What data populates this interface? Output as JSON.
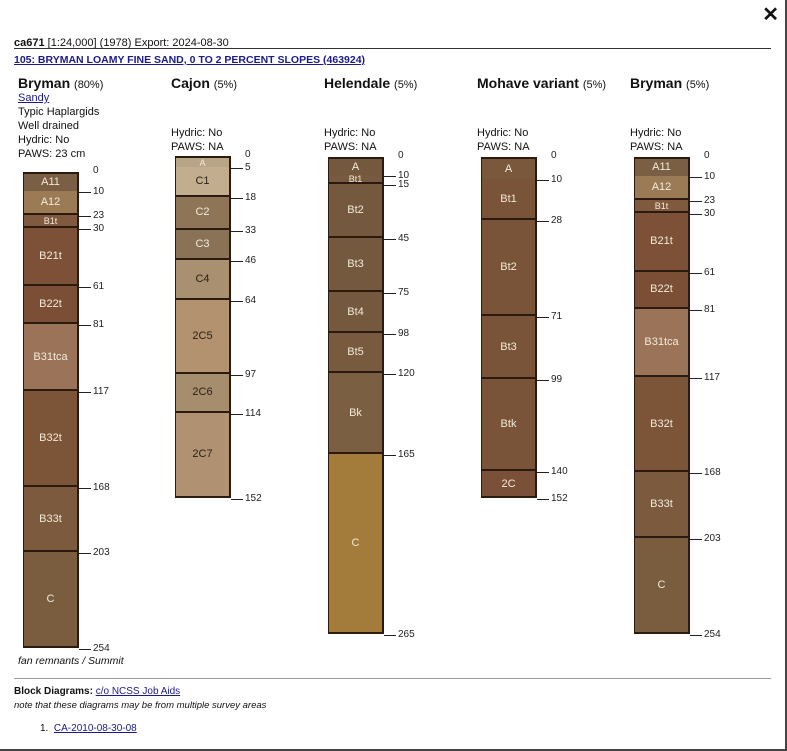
{
  "header": {
    "survey": "ca671",
    "scale": "[1:24,000]",
    "year": "(1978)",
    "export": "Export: 2024-08-30"
  },
  "mapunit_link": "105: BRYMAN LOAMY FINE SAND, 0 TO 2 PERCENT SLOPES (463924)",
  "close_label": "✕",
  "components": [
    {
      "name": "Bryman",
      "pct": "(80%)",
      "link": "Sandy",
      "lines": [
        "Typic Haplargids",
        "Well drained",
        "Hydric: No",
        "PAWS: 23 cm"
      ],
      "horizons": [
        {
          "n": "A11",
          "b": 10,
          "c": "#7a5f44"
        },
        {
          "n": "A12",
          "b": 23,
          "c": "#9b7b55"
        },
        {
          "n": "B1t",
          "b": 30,
          "c": "#7f5a3e"
        },
        {
          "n": "B21t",
          "b": 61,
          "c": "#7c5138"
        },
        {
          "n": "B22t",
          "b": 81,
          "c": "#7a4f36"
        },
        {
          "n": "B31tca",
          "b": 117,
          "c": "#9a7358"
        },
        {
          "n": "B32t",
          "b": 168,
          "c": "#7c5539"
        },
        {
          "n": "B33t",
          "b": 203,
          "c": "#7b5a3e"
        },
        {
          "n": "C",
          "b": 254,
          "c": "#7a5d3f"
        }
      ],
      "footer": "fan remnants / Summit"
    },
    {
      "name": "Cajon",
      "pct": "(5%)",
      "lines": [
        "Hydric: No",
        "PAWS: NA"
      ],
      "horizons": [
        {
          "n": "A",
          "b": 5,
          "c": "#b8a486"
        },
        {
          "n": "C1",
          "b": 18,
          "c": "#c2ad8e",
          "dark": true
        },
        {
          "n": "C2",
          "b": 33,
          "c": "#8e7558"
        },
        {
          "n": "C3",
          "b": 46,
          "c": "#8a7256"
        },
        {
          "n": "C4",
          "b": 64,
          "c": "#a89070",
          "dark": true
        },
        {
          "n": "2C5",
          "b": 97,
          "c": "#b39270",
          "dark": true
        },
        {
          "n": "2C6",
          "b": 114,
          "c": "#a58d6d",
          "dark": true
        },
        {
          "n": "2C7",
          "b": 152,
          "c": "#b09272",
          "dark": true
        }
      ]
    },
    {
      "name": "Helendale",
      "pct": "(5%)",
      "lines": [
        "Hydric: No",
        "PAWS: NA"
      ],
      "horizons": [
        {
          "n": "A",
          "b": 10,
          "c": "#75593e"
        },
        {
          "n": "Bt1",
          "b": 15,
          "c": "#775a3f"
        },
        {
          "n": "Bt2",
          "b": 45,
          "c": "#75593e"
        },
        {
          "n": "Bt3",
          "b": 75,
          "c": "#75593e"
        },
        {
          "n": "Bt4",
          "b": 98,
          "c": "#75593e"
        },
        {
          "n": "Bt5",
          "b": 120,
          "c": "#785a3f"
        },
        {
          "n": "Bk",
          "b": 165,
          "c": "#7a5f42"
        },
        {
          "n": "C",
          "b": 265,
          "c": "#a37c3c"
        }
      ]
    },
    {
      "name": "Mohave variant",
      "pct": "(5%)",
      "lines": [
        "Hydric: No",
        "PAWS: NA"
      ],
      "horizons": [
        {
          "n": "A",
          "b": 10,
          "c": "#7a583c"
        },
        {
          "n": "Bt1",
          "b": 28,
          "c": "#7a5439"
        },
        {
          "n": "Bt2",
          "b": 71,
          "c": "#7a5439"
        },
        {
          "n": "Bt3",
          "b": 99,
          "c": "#7a5439"
        },
        {
          "n": "Btk",
          "b": 140,
          "c": "#7a5439"
        },
        {
          "n": "2C",
          "b": 152,
          "c": "#7a5038"
        }
      ]
    },
    {
      "name": "Bryman",
      "pct": "(5%)",
      "lines": [
        "Hydric: No",
        "PAWS: NA"
      ],
      "horizons": [
        {
          "n": "A11",
          "b": 10,
          "c": "#7a5f44"
        },
        {
          "n": "A12",
          "b": 23,
          "c": "#9b7b55"
        },
        {
          "n": "B1t",
          "b": 30,
          "c": "#7f5a3e"
        },
        {
          "n": "B21t",
          "b": 61,
          "c": "#7c5138"
        },
        {
          "n": "B22t",
          "b": 81,
          "c": "#7a4f36"
        },
        {
          "n": "B31tca",
          "b": 117,
          "c": "#9a7358"
        },
        {
          "n": "B32t",
          "b": 168,
          "c": "#7c5539"
        },
        {
          "n": "B33t",
          "b": 203,
          "c": "#7b5a3e"
        },
        {
          "n": "C",
          "b": 254,
          "c": "#7a5d3f"
        }
      ]
    }
  ],
  "block": {
    "label": "Block Diagrams:",
    "link": "c/o NCSS Job Aids",
    "note": "note that these diagrams may be from multiple survey areas",
    "items": [
      {
        "num": "1.",
        "link": "CA-2010-08-30-08"
      }
    ]
  }
}
